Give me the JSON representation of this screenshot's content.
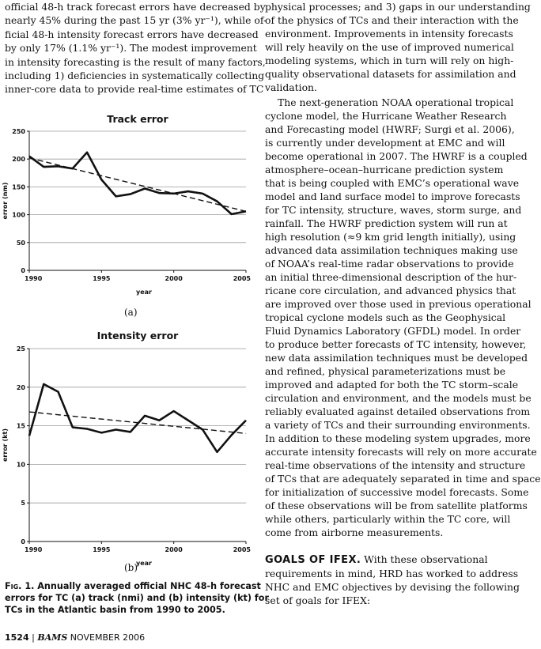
{
  "left_text_lines": [
    "official 48-h track forecast errors have decreased by",
    "nearly 45% during the past 15 yr (3% yr⁻¹), while of-",
    "ficial 48-h intensity forecast errors have decreased",
    "by only 17% (1.1% yr⁻¹). The modest improvement",
    "in intensity forecasting is the result of many factors,",
    "including 1) deficiencies in systematically collecting",
    "inner-core data to provide real-time estimates of TC"
  ],
  "right_para1_lines": [
    "physical processes; and 3) gaps in our understanding",
    "of the physics of TCs and their interaction with the",
    "environment. Improvements in intensity forecasts",
    "will rely heavily on the use of improved numerical",
    "modeling systems, which in turn will rely on high-",
    "quality observational datasets for assimilation and",
    "validation."
  ],
  "right_para2_lines": [
    "The next-generation NOAA operational tropical",
    "cyclone model, the Hurricane Weather Research",
    "and Forecasting model (HWRF; Surgi et al. 2006),",
    "is currently under development at EMC and will",
    "become operational in 2007. The HWRF is a coupled",
    "atmosphere–ocean–hurricane prediction system",
    "that is being coupled with EMC’s operational wave",
    "model and land surface model to improve forecasts",
    "for TC intensity, structure, waves, storm surge, and",
    "rainfall. The HWRF prediction system will run at",
    "high resolution (≈9 km grid length initially), using",
    "advanced data assimilation techniques making use",
    "of NOAA’s real-time radar observations to provide",
    "an initial three-dimensional description of the hur-",
    "ricane core circulation, and advanced physics that",
    "are improved over those used in previous operational",
    "tropical cyclone models such as the Geophysical",
    "Fluid Dynamics Laboratory (GFDL) model. In order",
    "to produce better forecasts of TC intensity, however,",
    "new data assimilation techniques must be developed",
    "and refined, physical parameterizations must be",
    "improved and adapted for both the TC storm–scale",
    "circulation and environment, and the models must be",
    "reliably evaluated against detailed observations from",
    "a variety of TCs and their surrounding environments.",
    "In addition to these modeling system upgrades, more",
    "accurate intensity forecasts will rely on more accurate",
    "real-time observations of the intensity and structure",
    "of TCs that are adequately separated in time and space",
    "for initialization of successive model forecasts. Some",
    "of these observations will be from satellite platforms",
    "while others, particularly within the TC core, will",
    "come from airborne measurements."
  ],
  "goals": {
    "heading": "GOALS OF IFEX.",
    "first_line_rest": " With these observational",
    "lines": [
      "requirements in mind, HRD has worked to address",
      "NHC and EMC objectives by devising the following",
      "set of goals for IFEX:"
    ]
  },
  "figure": {
    "caption_label": "Fig. 1.",
    "caption_lines": [
      " Annually averaged official NHC 48-h forecast",
      "errors for TC (a) track (nmi) and (b) intensity (kt) for",
      "TCs in the Atlantic basin from 1990 to 2005."
    ],
    "subcaption_a": "(a)",
    "subcaption_b": "(b)"
  },
  "footer": {
    "page": "1524",
    "separator": "|",
    "journal": "BAMS",
    "date": "NOVEMBER 2006"
  },
  "chart_data": [
    {
      "type": "line",
      "title": "Track error",
      "xlabel": "year",
      "ylabel": "error (nm)",
      "xlim": [
        1990,
        2005
      ],
      "ylim": [
        0,
        250
      ],
      "xticks": [
        1990,
        1995,
        2000,
        2005
      ],
      "yticks": [
        0,
        50,
        100,
        150,
        200,
        250
      ],
      "grid": true,
      "series": [
        {
          "style": "solid",
          "x": [
            1990,
            1991,
            1992,
            1993,
            1994,
            1995,
            1996,
            1997,
            1998,
            1999,
            2000,
            2001,
            2002,
            2003,
            2004,
            2005
          ],
          "y": [
            205,
            186,
            187,
            183,
            212,
            163,
            133,
            137,
            147,
            139,
            138,
            142,
            138,
            124,
            101,
            106
          ]
        },
        {
          "style": "dashed",
          "x": [
            1990,
            2005
          ],
          "y": [
            202,
            106
          ]
        }
      ]
    },
    {
      "type": "line",
      "title": "Intensity error",
      "xlabel": "year",
      "ylabel": "error (kt)",
      "xlim": [
        1990,
        2005
      ],
      "ylim": [
        0,
        25
      ],
      "xticks": [
        1990,
        1995,
        2000,
        2005
      ],
      "yticks": [
        0,
        5,
        10,
        15,
        20,
        25
      ],
      "grid": true,
      "series": [
        {
          "style": "solid",
          "x": [
            1990,
            1991,
            1992,
            1993,
            1994,
            1995,
            1996,
            1997,
            1998,
            1999,
            2000,
            2001,
            2002,
            2003,
            2004,
            2005
          ],
          "y": [
            13.7,
            20.4,
            19.4,
            14.8,
            14.6,
            14.1,
            14.5,
            14.2,
            16.3,
            15.7,
            16.9,
            15.7,
            14.5,
            11.6,
            13.8,
            15.7
          ]
        },
        {
          "style": "dashed",
          "x": [
            1990,
            2005
          ],
          "y": [
            16.8,
            14.0
          ]
        }
      ]
    }
  ]
}
